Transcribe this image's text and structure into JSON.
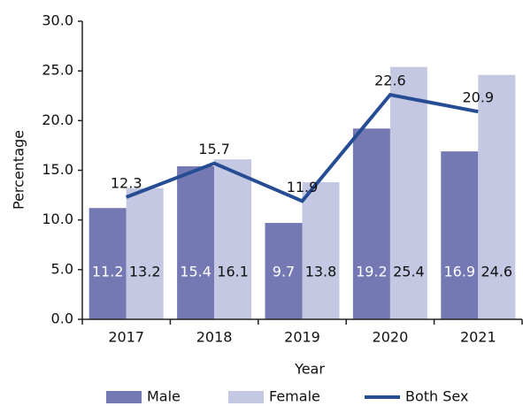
{
  "chart_data": {
    "type": "bar_line",
    "categories": [
      "2017",
      "2018",
      "2019",
      "2020",
      "2021"
    ],
    "series": [
      {
        "name": "Male",
        "color": "#7478b3",
        "values": [
          11.2,
          15.4,
          9.7,
          19.2,
          16.9
        ]
      },
      {
        "name": "Female",
        "color": "#c5c8e3",
        "values": [
          13.2,
          16.1,
          13.8,
          25.4,
          24.6
        ]
      },
      {
        "name": "Both Sex",
        "color": "#264d94",
        "values": [
          12.3,
          15.7,
          11.9,
          22.6,
          20.9
        ]
      }
    ],
    "xlabel": "Year",
    "ylabel": "Percentage",
    "ylim": [
      0,
      30
    ],
    "yticks": [
      {
        "value": 0,
        "label": "0.0"
      },
      {
        "value": 5,
        "label": "5.0"
      },
      {
        "value": 10,
        "label": "10.0"
      },
      {
        "value": 15,
        "label": "15.0"
      },
      {
        "value": 20,
        "label": "20.0"
      },
      {
        "value": 25,
        "label": "25.0"
      },
      {
        "value": 30,
        "label": "30.0"
      }
    ],
    "grid": false,
    "legend": "bottom"
  }
}
